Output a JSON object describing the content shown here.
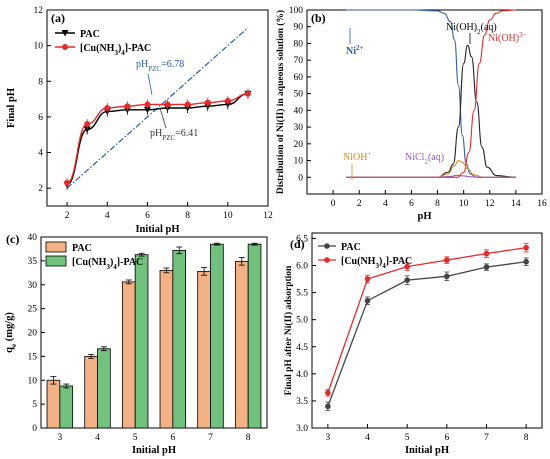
{
  "chart_data": [
    {
      "panel": "(a)",
      "type": "line",
      "xlabel": "Initial pH",
      "ylabel": "Final pH",
      "xlim": [
        1,
        12
      ],
      "ylim": [
        1,
        12
      ],
      "xticks": [
        "2",
        "4",
        "6",
        "8",
        "10",
        "12"
      ],
      "yticks": [
        "2",
        "4",
        "6",
        "8",
        "10",
        "12"
      ],
      "legend_position": "top-left",
      "series": [
        {
          "name": "PAC",
          "color": "#000000",
          "marker": "triangle-down",
          "x": [
            2,
            3,
            4,
            5,
            6,
            7,
            8,
            9,
            10,
            11
          ],
          "y": [
            2.2,
            5.3,
            6.3,
            6.4,
            6.4,
            6.5,
            6.5,
            6.6,
            6.7,
            7.3
          ]
        },
        {
          "name": "[Cu(NH3)4]-PAC",
          "color": "#e8292b",
          "marker": "circle",
          "x": [
            2,
            3,
            4,
            5,
            6,
            7,
            8,
            9,
            10,
            11
          ],
          "y": [
            2.3,
            5.6,
            6.5,
            6.6,
            6.7,
            6.7,
            6.7,
            6.8,
            6.9,
            7.3
          ]
        },
        {
          "name": "y = x",
          "color": "#2a5caa",
          "style": "dash-dot",
          "x": [
            2,
            11
          ],
          "y": [
            2,
            11
          ]
        }
      ],
      "annotations": [
        {
          "text": "pH",
          "sub": "PZC",
          "value": "=6.78"
        },
        {
          "text": "pH",
          "sub": "PZC",
          "value": "=6.41"
        }
      ]
    },
    {
      "panel": "(b)",
      "type": "line",
      "xlabel": "pH",
      "ylabel": "Distribution of Ni(II) in aqueous solution (%)",
      "xlim": [
        -2,
        16
      ],
      "ylim": [
        -10,
        100
      ],
      "xticks": [
        "0",
        "2",
        "4",
        "6",
        "8",
        "10",
        "12",
        "14",
        "16"
      ],
      "yticks": [
        "0",
        "10",
        "20",
        "30",
        "40",
        "50",
        "60",
        "70",
        "80",
        "90",
        "100"
      ],
      "series": [
        {
          "name": "Ni2+",
          "color": "#2f5ea8",
          "x": [
            1,
            6,
            8,
            8.5,
            9,
            9.3,
            9.6,
            9.9,
            10.2,
            10.5,
            11,
            14
          ],
          "y": [
            100,
            100,
            99.5,
            98,
            93,
            82,
            55,
            25,
            8,
            2,
            0,
            0
          ]
        },
        {
          "name": "Ni(OH)2(aq)",
          "color": "#222222",
          "x": [
            1,
            8,
            8.8,
            9.2,
            9.6,
            10.0,
            10.3,
            10.6,
            11.0,
            11.4,
            11.8,
            12.5,
            14
          ],
          "y": [
            0,
            0,
            3,
            8,
            30,
            68,
            79,
            72,
            45,
            18,
            6,
            1,
            0
          ]
        },
        {
          "name": "Ni(OH)3-",
          "color": "#e8292b",
          "x": [
            1,
            9.5,
            10,
            10.4,
            10.8,
            11.2,
            11.6,
            12,
            12.5,
            13,
            14
          ],
          "y": [
            0,
            0,
            3,
            15,
            40,
            68,
            85,
            94,
            98,
            99.5,
            100
          ]
        },
        {
          "name": "NiOH+",
          "color": "#d98b1f",
          "x": [
            1,
            8,
            8.8,
            9.3,
            9.6,
            9.9,
            10.3,
            10.8,
            11.5,
            14
          ],
          "y": [
            0,
            0,
            2,
            7,
            10,
            9,
            5,
            1.5,
            0,
            0
          ]
        },
        {
          "name": "NiCl2(aq)",
          "color": "#9b59b6",
          "x": [
            1,
            8,
            9,
            9.5,
            10,
            10.5,
            11.5,
            14
          ],
          "y": [
            0,
            0,
            0.5,
            1.2,
            0.8,
            0.3,
            0,
            0
          ]
        }
      ],
      "annotations": [
        "Ni",
        "2+",
        "Ni(OH)",
        "2",
        "(aq)",
        "Ni(OH)",
        "3−",
        "NiOH",
        "+",
        "NiCl",
        "2",
        "(aq)"
      ]
    },
    {
      "panel": "(c)",
      "type": "bar",
      "xlabel": "Initial pH",
      "ylabel": "q",
      "ylabel_sub": "e",
      "ylabel_unit": " (mg/g)",
      "categories": [
        "3",
        "4",
        "5",
        "6",
        "7",
        "8"
      ],
      "ylim": [
        0,
        40
      ],
      "yticks": [
        "0",
        "5",
        "10",
        "15",
        "20",
        "25",
        "30",
        "35",
        "40"
      ],
      "legend_position": "top-left",
      "series": [
        {
          "name": "PAC",
          "color": "#f4b183",
          "values": [
            10.0,
            15.0,
            30.6,
            33.0,
            32.8,
            34.9
          ],
          "errors": [
            0.8,
            0.4,
            0.4,
            0.5,
            0.8,
            0.8
          ]
        },
        {
          "name": "[Cu(NH3)4]-PAC",
          "color": "#70c27c",
          "values": [
            8.8,
            16.6,
            36.3,
            37.2,
            38.5,
            38.5
          ],
          "errors": [
            0.4,
            0.4,
            0.3,
            0.7,
            0.2,
            0.2
          ]
        }
      ]
    },
    {
      "panel": "(d)",
      "type": "line",
      "xlabel": "Initial pH",
      "ylabel": "Final pH after Ni(II) adsorption",
      "xlim": [
        2.6,
        8.4
      ],
      "ylim": [
        3.0,
        6.6
      ],
      "xticks": [
        "3",
        "4",
        "5",
        "6",
        "7",
        "8"
      ],
      "yticks": [
        "3.0",
        "3.5",
        "4.0",
        "4.5",
        "5.0",
        "5.5",
        "6.0",
        "6.5"
      ],
      "legend_position": "top-left",
      "series": [
        {
          "name": "PAC",
          "color": "#444444",
          "x": [
            3,
            4,
            5,
            6,
            7,
            8
          ],
          "y": [
            3.4,
            5.35,
            5.73,
            5.8,
            5.97,
            6.07
          ],
          "errors": [
            0.08,
            0.07,
            0.08,
            0.08,
            0.06,
            0.07
          ]
        },
        {
          "name": "[Cu(NH3)4]-PAC",
          "color": "#e8292b",
          "x": [
            3,
            4,
            5,
            6,
            7,
            8
          ],
          "y": [
            3.65,
            5.75,
            5.98,
            6.1,
            6.22,
            6.33
          ],
          "errors": [
            0.06,
            0.07,
            0.07,
            0.06,
            0.07,
            0.08
          ]
        }
      ]
    }
  ]
}
